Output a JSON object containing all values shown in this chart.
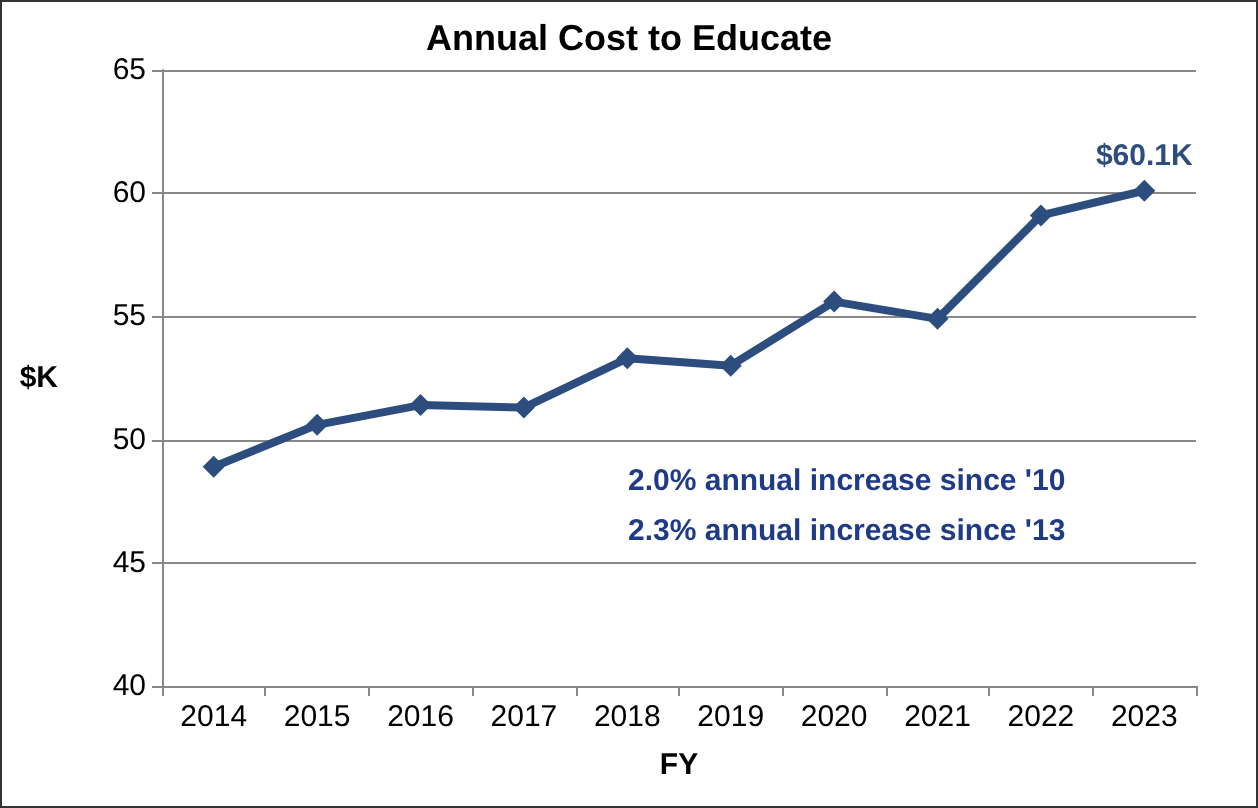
{
  "chart_data": {
    "type": "line",
    "title": "Annual Cost to Educate",
    "xlabel": "FY",
    "ylabel": "$K",
    "categories": [
      "2014",
      "2015",
      "2016",
      "2017",
      "2018",
      "2019",
      "2020",
      "2021",
      "2022",
      "2023"
    ],
    "series": [
      {
        "color": "#2c4d7e",
        "values": [
          48.9,
          50.6,
          51.4,
          51.3,
          53.3,
          53.0,
          55.6,
          54.9,
          59.1,
          60.1
        ]
      }
    ],
    "ylim": [
      40,
      65
    ],
    "yticks": [
      40,
      45,
      50,
      55,
      60,
      65
    ],
    "grid": "y",
    "marker": "diamond",
    "line_style": "solid",
    "annotations": [
      {
        "text": "$60.1K",
        "x": "2023",
        "y": 60.1
      },
      "2.0% annual increase since '10",
      "2.3% annual increase since '13"
    ]
  }
}
